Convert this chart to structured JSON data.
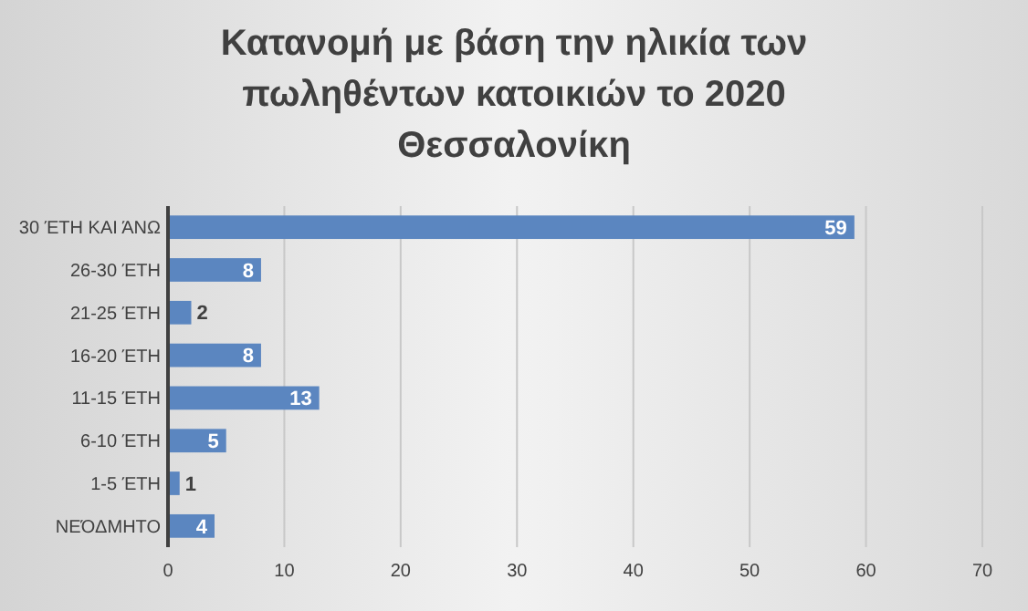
{
  "chart_data": {
    "type": "bar",
    "orientation": "horizontal",
    "title": "Κατανομή με βάση την ηλικία των πωληθέντων κατοικιών το 2020 Θεσσαλονίκη",
    "categories": [
      "30 ΈΤΗ ΚΑΙ ΆΝΩ",
      "26-30 ΈΤΗ",
      "21-25 ΈΤΗ",
      "16-20 ΈΤΗ",
      "11-15 ΈΤΗ",
      "6-10 ΈΤΗ",
      "1-5 ΈΤΗ",
      "ΝΕΌΔΜΗΤΟ"
    ],
    "values": [
      59,
      8,
      2,
      8,
      13,
      5,
      1,
      4
    ],
    "color": "#5b86c0",
    "xlim": [
      0,
      70
    ],
    "xticks": [
      0,
      10,
      20,
      30,
      40,
      50,
      60,
      70
    ],
    "grid": "x",
    "data_labels": true
  }
}
